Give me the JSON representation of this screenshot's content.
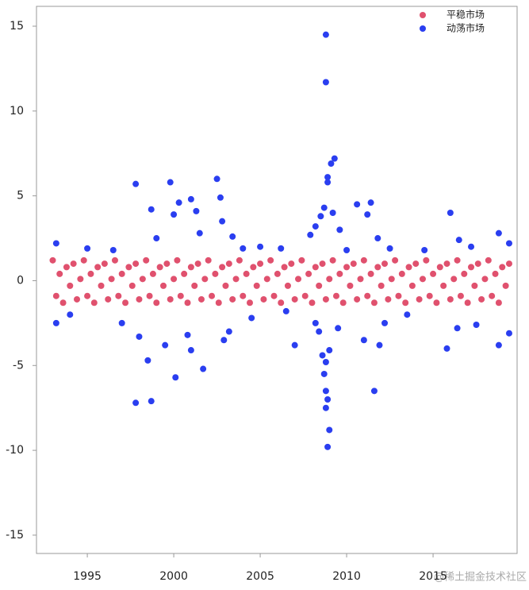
{
  "chart_data": {
    "type": "scatter",
    "xlim": [
      1992.06,
      2019.86
    ],
    "ylim": [
      -16.08,
      16.17
    ],
    "xticks": [
      1995,
      2000,
      2005,
      2010,
      2015
    ],
    "yticks": [
      -15,
      -10,
      -5,
      0,
      5,
      10,
      15
    ],
    "legend": "top-right",
    "series": [
      {
        "name": "平稳市场",
        "color": "#e0516e",
        "x": [
          1993.0,
          1993.2,
          1993.4,
          1993.6,
          1993.8,
          1994.0,
          1994.2,
          1994.4,
          1994.6,
          1994.8,
          1995.0,
          1995.2,
          1995.4,
          1995.6,
          1995.8,
          1996.0,
          1996.2,
          1996.4,
          1996.6,
          1996.8,
          1997.0,
          1997.2,
          1997.4,
          1997.6,
          1997.8,
          1998.0,
          1998.2,
          1998.4,
          1998.6,
          1998.8,
          1999.0,
          1999.2,
          1999.4,
          1999.6,
          1999.8,
          2000.0,
          2000.2,
          2000.4,
          2000.6,
          2000.8,
          2001.0,
          2001.2,
          2001.4,
          2001.6,
          2001.8,
          2002.0,
          2002.2,
          2002.4,
          2002.6,
          2002.8,
          2003.0,
          2003.2,
          2003.4,
          2003.6,
          2003.8,
          2004.0,
          2004.2,
          2004.4,
          2004.6,
          2004.8,
          2005.0,
          2005.2,
          2005.4,
          2005.6,
          2005.8,
          2006.0,
          2006.2,
          2006.4,
          2006.6,
          2006.8,
          2007.0,
          2007.2,
          2007.4,
          2007.6,
          2007.8,
          2008.0,
          2008.2,
          2008.4,
          2008.6,
          2008.8,
          2009.0,
          2009.2,
          2009.4,
          2009.6,
          2009.8,
          2010.0,
          2010.2,
          2010.4,
          2010.6,
          2010.8,
          2011.0,
          2011.2,
          2011.4,
          2011.6,
          2011.8,
          2012.0,
          2012.2,
          2012.4,
          2012.6,
          2012.8,
          2013.0,
          2013.2,
          2013.4,
          2013.6,
          2013.8,
          2014.0,
          2014.2,
          2014.4,
          2014.6,
          2014.8,
          2015.0,
          2015.2,
          2015.4,
          2015.6,
          2015.8,
          2016.0,
          2016.2,
          2016.4,
          2016.6,
          2016.8,
          2017.0,
          2017.2,
          2017.4,
          2017.6,
          2017.8,
          2018.0,
          2018.2,
          2018.4,
          2018.6,
          2018.8,
          2019.0,
          2019.2,
          2019.4
        ],
        "values": [
          1.2,
          -0.9,
          0.4,
          -1.3,
          0.8,
          -0.3,
          1.0,
          -1.1,
          0.1,
          1.2,
          -0.9,
          0.4,
          -1.3,
          0.8,
          -0.3,
          1.0,
          -1.1,
          0.1,
          1.2,
          -0.9,
          0.4,
          -1.3,
          0.8,
          -0.3,
          1.0,
          -1.1,
          0.1,
          1.2,
          -0.9,
          0.4,
          -1.3,
          0.8,
          -0.3,
          1.0,
          -1.1,
          0.1,
          1.2,
          -0.9,
          0.4,
          -1.3,
          0.8,
          -0.3,
          1.0,
          -1.1,
          0.1,
          1.2,
          -0.9,
          0.4,
          -1.3,
          0.8,
          -0.3,
          1.0,
          -1.1,
          0.1,
          1.2,
          -0.9,
          0.4,
          -1.3,
          0.8,
          -0.3,
          1.0,
          -1.1,
          0.1,
          1.2,
          -0.9,
          0.4,
          -1.3,
          0.8,
          -0.3,
          1.0,
          -1.1,
          0.1,
          1.2,
          -0.9,
          0.4,
          -1.3,
          0.8,
          -0.3,
          1.0,
          -1.1,
          0.1,
          1.2,
          -0.9,
          0.4,
          -1.3,
          0.8,
          -0.3,
          1.0,
          -1.1,
          0.1,
          1.2,
          -0.9,
          0.4,
          -1.3,
          0.8,
          -0.3,
          1.0,
          -1.1,
          0.1,
          1.2,
          -0.9,
          0.4,
          -1.3,
          0.8,
          -0.3,
          1.0,
          -1.1,
          0.1,
          1.2,
          -0.9,
          0.4,
          -1.3,
          0.8,
          -0.3,
          1.0,
          -1.1,
          0.1,
          1.2,
          -0.9,
          0.4,
          -1.3,
          0.8,
          -0.3,
          1.0,
          -1.1,
          0.1,
          1.2,
          -0.9,
          0.4,
          -1.3,
          0.8,
          -0.3,
          1.0
        ]
      },
      {
        "name": "动荡市场",
        "color": "#2a3ef0",
        "x": [
          2008.8,
          2008.8,
          2009.3,
          2009.1,
          2008.9,
          2008.9,
          2008.7,
          2008.5,
          2009.2,
          2008.2,
          2007.9,
          2009.6,
          2008.9,
          2009.0,
          2008.8,
          2008.9,
          2008.8,
          2008.7,
          2008.8,
          2008.6,
          2009.0,
          2008.4,
          2008.2,
          2009.5,
          2011.6,
          2011.4,
          2011.2,
          2010.6,
          2011.8,
          2011.0,
          2011.9,
          2012.5,
          2012.2,
          1997.8,
          1998.7,
          1997.8,
          1999.8,
          2002.5,
          2002.7,
          2001.0,
          2000.3,
          1998.7,
          2000.0,
          2001.3,
          2002.8,
          1998.5,
          2000.1,
          2001.7,
          2001.0,
          2002.9,
          1999.5,
          2000.8,
          1998.0,
          1997.0,
          2003.2,
          1999.0,
          2001.5,
          2003.4,
          2016.0,
          2015.8,
          2016.4,
          2016.5,
          2018.8,
          2018.8,
          2019.4,
          2019.4,
          1993.2,
          1993.2,
          1994.0,
          1995.0,
          2006.5,
          2007.0,
          2006.2,
          2004.5,
          2013.5,
          2014.5,
          2017.2,
          2017.5,
          1996.5,
          2005.0,
          2010.0,
          2004.0
        ],
        "values": [
          14.5,
          11.7,
          7.2,
          6.9,
          6.1,
          5.8,
          4.3,
          3.8,
          4.0,
          3.2,
          2.7,
          3.0,
          -9.8,
          -8.8,
          -7.5,
          -7.0,
          -6.5,
          -5.5,
          -4.8,
          -4.4,
          -4.1,
          -3.0,
          -2.5,
          -2.8,
          -6.5,
          4.6,
          3.9,
          4.5,
          2.5,
          -3.5,
          -3.8,
          1.9,
          -2.5,
          -7.2,
          -7.1,
          5.7,
          5.8,
          6.0,
          4.9,
          4.8,
          4.6,
          4.2,
          3.9,
          4.1,
          3.5,
          -4.7,
          -5.7,
          -5.2,
          -4.1,
          -3.5,
          -3.8,
          -3.2,
          -3.3,
          -2.5,
          -3.0,
          2.5,
          2.8,
          2.6,
          4.0,
          -4.0,
          -2.8,
          2.4,
          2.8,
          -3.8,
          -3.1,
          2.2,
          2.2,
          -2.5,
          -2.0,
          1.9,
          -1.8,
          -3.8,
          1.9,
          -2.2,
          -2.0,
          1.8,
          2.0,
          -2.6,
          1.8,
          2.0,
          1.8,
          1.9
        ]
      }
    ]
  },
  "watermark": "@稀土掘金技术社区"
}
